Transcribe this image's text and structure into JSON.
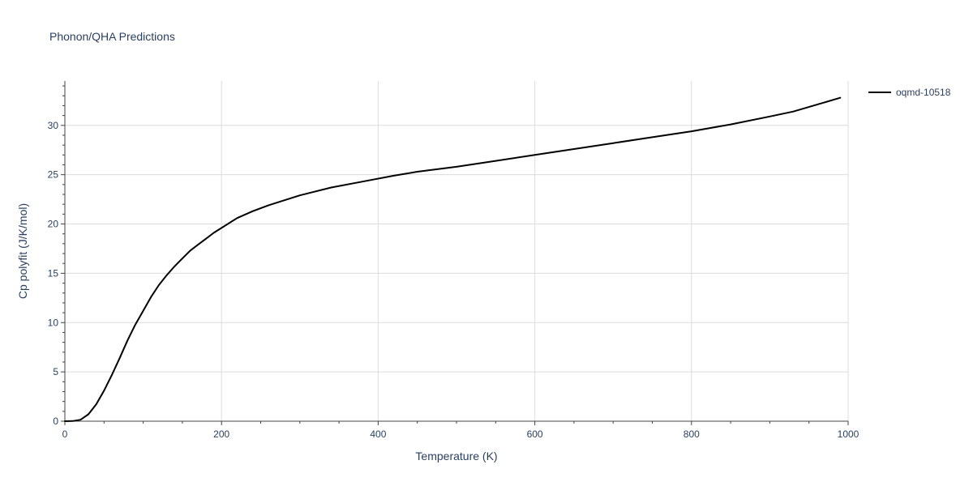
{
  "chart_data": {
    "type": "line",
    "title": "Phonon/QHA Predictions",
    "xlabel": "Temperature (K)",
    "ylabel": "Cp polyfit (J/K/mol)",
    "xlim": [
      0,
      1000
    ],
    "ylim": [
      0,
      34.5
    ],
    "x_ticks": [
      0,
      200,
      400,
      600,
      800,
      1000
    ],
    "y_ticks": [
      0,
      5,
      10,
      15,
      20,
      25,
      30
    ],
    "x_minor_step": 50,
    "y_minor_step": 1,
    "grid": true,
    "legend_position": "top-right",
    "series": [
      {
        "name": "oqmd-10518",
        "color": "#000000",
        "x": [
          0,
          10,
          20,
          30,
          40,
          50,
          60,
          70,
          80,
          90,
          100,
          110,
          120,
          130,
          140,
          150,
          160,
          170,
          180,
          190,
          200,
          220,
          240,
          260,
          280,
          300,
          340,
          380,
          420,
          450,
          500,
          550,
          600,
          650,
          700,
          750,
          800,
          850,
          900,
          930,
          960,
          990
        ],
        "y": [
          0,
          0.02,
          0.15,
          0.7,
          1.7,
          3.1,
          4.7,
          6.4,
          8.2,
          9.8,
          11.2,
          12.6,
          13.8,
          14.8,
          15.7,
          16.5,
          17.3,
          17.9,
          18.5,
          19.1,
          19.6,
          20.6,
          21.3,
          21.9,
          22.4,
          22.9,
          23.7,
          24.3,
          24.9,
          25.3,
          25.8,
          26.4,
          27.0,
          27.6,
          28.2,
          28.8,
          29.4,
          30.1,
          30.9,
          31.4,
          32.1,
          32.8
        ]
      }
    ]
  }
}
